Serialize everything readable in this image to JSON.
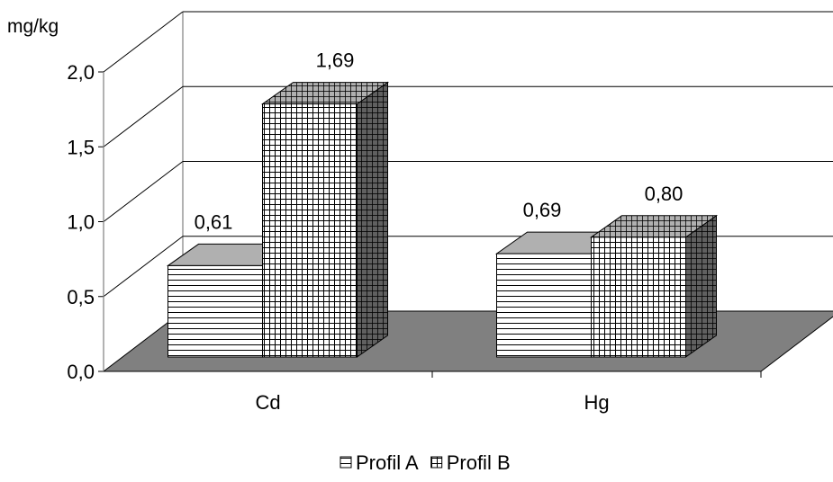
{
  "chart_data": {
    "type": "bar",
    "categories": [
      "Cd",
      "Hg"
    ],
    "series": [
      {
        "name": "Profil A",
        "values": [
          0.61,
          0.69
        ]
      },
      {
        "name": "Profil B",
        "values": [
          1.69,
          0.8
        ]
      }
    ],
    "data_labels": [
      [
        "0,61",
        "0,69"
      ],
      [
        "1,69",
        "0,80"
      ]
    ],
    "ylabel": "mg/kg",
    "ylim": [
      0,
      2.0
    ],
    "yticks": [
      "0,0",
      "0,5",
      "1,0",
      "1,5",
      "2,0"
    ],
    "ytick_values": [
      0,
      0.5,
      1.0,
      1.5,
      2.0
    ],
    "grid": true,
    "legend_position": "bottom",
    "style": "3d-clustered-column",
    "colors": {
      "floor": "#808080",
      "bar_face": "#ffffff",
      "bar_side": "#606060",
      "bar_top": "#b0b0b0",
      "lines": "#000000"
    }
  }
}
